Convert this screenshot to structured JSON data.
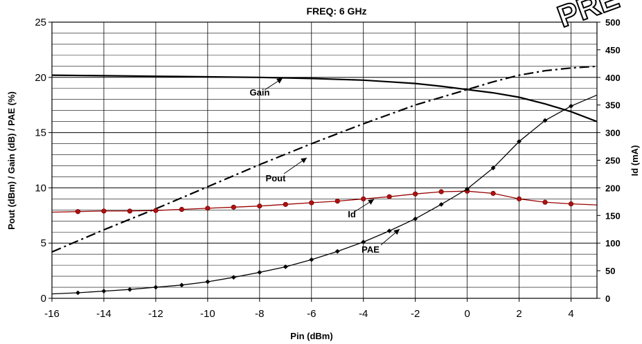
{
  "chart_data": {
    "type": "line",
    "title": "FREQ: 6 GHz",
    "xlabel": "Pin (dBm)",
    "ylabel": "Pout (dBm) / Gain (dB) / PAE (%)",
    "y2label": "Id (mA)",
    "xlim": [
      -16,
      5
    ],
    "ylim": [
      0,
      25
    ],
    "y2lim": [
      0,
      500
    ],
    "x_ticks": [
      "-16",
      "-14",
      "-12",
      "-10",
      "-8",
      "-6",
      "-4",
      "-2",
      "0",
      "2",
      "4"
    ],
    "y_ticks": [
      "0",
      "5",
      "10",
      "15",
      "20",
      "25"
    ],
    "y2_ticks": [
      "0",
      "50",
      "100",
      "150",
      "200",
      "250",
      "300",
      "350",
      "400",
      "450",
      "500"
    ],
    "grid": true,
    "series": [
      {
        "name": "Gain",
        "axis": "left",
        "color": "#000000",
        "style": "solid",
        "x": [
          -16,
          -14,
          -12,
          -10,
          -8,
          -6,
          -4,
          -3,
          -2,
          -1,
          0,
          1,
          2,
          3,
          4,
          5
        ],
        "y": [
          20.2,
          20.15,
          20.1,
          20.05,
          20.0,
          19.9,
          19.75,
          19.6,
          19.45,
          19.2,
          18.9,
          18.6,
          18.2,
          17.6,
          16.9,
          16.0
        ]
      },
      {
        "name": "Pout",
        "axis": "left",
        "color": "#000000",
        "style": "dashdot",
        "x": [
          -16,
          -14,
          -12,
          -10,
          -8,
          -6,
          -4,
          -2,
          0,
          1,
          2,
          3,
          4,
          5
        ],
        "y": [
          4.2,
          6.2,
          8.1,
          10.1,
          12.1,
          14.0,
          15.8,
          17.5,
          18.9,
          19.6,
          20.2,
          20.6,
          20.85,
          21.0
        ]
      },
      {
        "name": "Id",
        "axis": "right",
        "color": "#990000",
        "style": "solid",
        "marker": "circle",
        "x": [
          -16,
          -15,
          -14,
          -13,
          -12,
          -11,
          -10,
          -9,
          -8,
          -7,
          -6,
          -5,
          -4,
          -3,
          -2,
          -1,
          0,
          1,
          2,
          3,
          4,
          5
        ],
        "y": [
          156,
          157,
          158,
          158,
          159,
          161,
          163,
          165,
          167,
          170,
          173,
          176,
          180,
          184,
          189,
          193,
          194,
          190,
          180,
          174,
          171,
          169
        ]
      },
      {
        "name": "PAE",
        "axis": "left",
        "color": "#000000",
        "style": "solid",
        "marker": "diamond",
        "x": [
          -16,
          -15,
          -14,
          -13,
          -12,
          -11,
          -10,
          -9,
          -8,
          -7,
          -6,
          -5,
          -4,
          -3,
          -2,
          -1,
          0,
          1,
          2,
          3,
          4,
          5
        ],
        "y": [
          0.4,
          0.5,
          0.65,
          0.8,
          1.0,
          1.2,
          1.5,
          1.9,
          2.35,
          2.85,
          3.5,
          4.25,
          5.1,
          6.1,
          7.2,
          8.5,
          9.9,
          11.8,
          14.2,
          16.1,
          17.4,
          18.4
        ]
      }
    ],
    "annotations": [
      {
        "text": "Gain",
        "series": "Gain"
      },
      {
        "text": "Pout",
        "series": "Pout"
      },
      {
        "text": "Id",
        "series": "Id"
      },
      {
        "text": "PAE",
        "series": "PAE"
      }
    ]
  },
  "watermark": "PRE"
}
